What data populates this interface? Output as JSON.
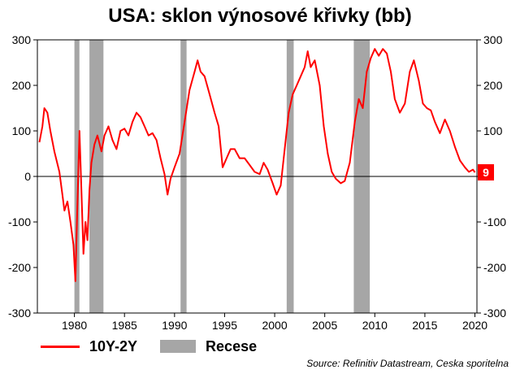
{
  "chart_data": {
    "type": "line",
    "title": "USA: sklon výnosové křivky (bb)",
    "x_range": [
      1976.3,
      2020.2
    ],
    "ylim": [
      -300,
      300
    ],
    "y_ticks": [
      -300,
      -200,
      -100,
      0,
      100,
      200,
      300
    ],
    "x_ticks": [
      1980,
      1985,
      1990,
      1995,
      2000,
      2005,
      2010,
      2015,
      2020
    ],
    "grid": false,
    "legend_position": "bottom-left",
    "last_value_label": "9",
    "series": [
      {
        "name": "10Y-2Y",
        "color": "#ff0000",
        "points": [
          [
            1976.5,
            75
          ],
          [
            1976.8,
            110
          ],
          [
            1977.0,
            150
          ],
          [
            1977.3,
            140
          ],
          [
            1977.6,
            100
          ],
          [
            1978.0,
            55
          ],
          [
            1978.5,
            10
          ],
          [
            1978.8,
            -40
          ],
          [
            1979.0,
            -75
          ],
          [
            1979.3,
            -55
          ],
          [
            1979.6,
            -100
          ],
          [
            1979.9,
            -150
          ],
          [
            1980.1,
            -230
          ],
          [
            1980.3,
            -60
          ],
          [
            1980.5,
            100
          ],
          [
            1980.7,
            -30
          ],
          [
            1980.9,
            -170
          ],
          [
            1981.1,
            -100
          ],
          [
            1981.3,
            -140
          ],
          [
            1981.5,
            -30
          ],
          [
            1981.7,
            30
          ],
          [
            1982.0,
            70
          ],
          [
            1982.3,
            90
          ],
          [
            1982.7,
            55
          ],
          [
            1983.0,
            90
          ],
          [
            1983.4,
            110
          ],
          [
            1983.8,
            80
          ],
          [
            1984.2,
            60
          ],
          [
            1984.6,
            100
          ],
          [
            1985.0,
            105
          ],
          [
            1985.4,
            90
          ],
          [
            1985.8,
            120
          ],
          [
            1986.2,
            140
          ],
          [
            1986.6,
            130
          ],
          [
            1987.0,
            110
          ],
          [
            1987.4,
            90
          ],
          [
            1987.8,
            95
          ],
          [
            1988.2,
            80
          ],
          [
            1988.6,
            40
          ],
          [
            1989.0,
            5
          ],
          [
            1989.3,
            -40
          ],
          [
            1989.6,
            -5
          ],
          [
            1990.0,
            20
          ],
          [
            1990.5,
            50
          ],
          [
            1991.0,
            120
          ],
          [
            1991.5,
            190
          ],
          [
            1992.0,
            230
          ],
          [
            1992.3,
            255
          ],
          [
            1992.6,
            230
          ],
          [
            1993.0,
            220
          ],
          [
            1993.5,
            180
          ],
          [
            1994.0,
            140
          ],
          [
            1994.4,
            110
          ],
          [
            1994.8,
            20
          ],
          [
            1995.2,
            40
          ],
          [
            1995.6,
            60
          ],
          [
            1996.0,
            60
          ],
          [
            1996.5,
            40
          ],
          [
            1997.0,
            40
          ],
          [
            1997.5,
            25
          ],
          [
            1998.0,
            10
          ],
          [
            1998.5,
            5
          ],
          [
            1998.9,
            30
          ],
          [
            1999.3,
            15
          ],
          [
            1999.8,
            -15
          ],
          [
            2000.2,
            -40
          ],
          [
            2000.6,
            -20
          ],
          [
            2001.0,
            60
          ],
          [
            2001.4,
            140
          ],
          [
            2001.8,
            180
          ],
          [
            2002.2,
            200
          ],
          [
            2002.6,
            220
          ],
          [
            2003.0,
            240
          ],
          [
            2003.3,
            275
          ],
          [
            2003.6,
            240
          ],
          [
            2004.0,
            255
          ],
          [
            2004.5,
            200
          ],
          [
            2004.9,
            110
          ],
          [
            2005.3,
            50
          ],
          [
            2005.7,
            10
          ],
          [
            2006.1,
            -5
          ],
          [
            2006.6,
            -15
          ],
          [
            2007.0,
            -10
          ],
          [
            2007.5,
            30
          ],
          [
            2008.0,
            120
          ],
          [
            2008.4,
            170
          ],
          [
            2008.8,
            150
          ],
          [
            2009.2,
            230
          ],
          [
            2009.6,
            260
          ],
          [
            2010.0,
            280
          ],
          [
            2010.4,
            265
          ],
          [
            2010.8,
            280
          ],
          [
            2011.2,
            270
          ],
          [
            2011.6,
            230
          ],
          [
            2012.0,
            170
          ],
          [
            2012.5,
            140
          ],
          [
            2013.0,
            160
          ],
          [
            2013.5,
            230
          ],
          [
            2013.9,
            255
          ],
          [
            2014.4,
            210
          ],
          [
            2014.8,
            160
          ],
          [
            2015.2,
            150
          ],
          [
            2015.6,
            145
          ],
          [
            2016.0,
            120
          ],
          [
            2016.5,
            95
          ],
          [
            2017.0,
            125
          ],
          [
            2017.5,
            100
          ],
          [
            2018.0,
            65
          ],
          [
            2018.5,
            35
          ],
          [
            2019.0,
            20
          ],
          [
            2019.4,
            10
          ],
          [
            2019.8,
            15
          ],
          [
            2020.0,
            9
          ]
        ]
      },
      {
        "name": "Recese",
        "color": "#a6a6a6",
        "ranges": [
          [
            1980.0,
            1980.5
          ],
          [
            1981.5,
            1982.9
          ],
          [
            1990.6,
            1991.2
          ],
          [
            2001.2,
            2001.9
          ],
          [
            2007.9,
            2009.5
          ]
        ]
      }
    ]
  },
  "source": "Source: Refinitiv Datastream, Ceska sporitelna"
}
